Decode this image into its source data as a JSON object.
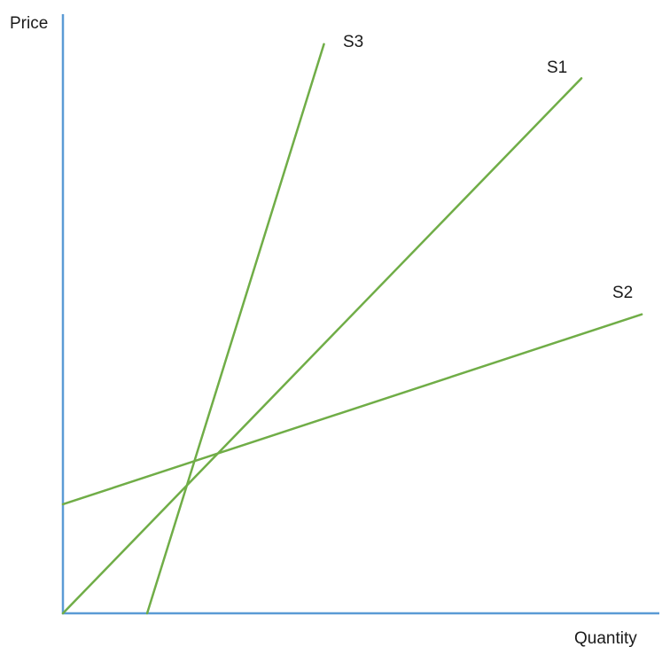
{
  "chart_data": {
    "type": "line",
    "title": "",
    "xlabel": "Quantity",
    "ylabel": "Price",
    "xlim": [
      0,
      100
    ],
    "ylim": [
      0,
      100
    ],
    "grid": false,
    "legend": "inline-labels",
    "series": [
      {
        "name": "S1",
        "x": [
          0,
          86.8
        ],
        "y": [
          0,
          89.3
        ]
      },
      {
        "name": "S2",
        "x": [
          0,
          96.9
        ],
        "y": [
          18.2,
          49.9
        ]
      },
      {
        "name": "S3",
        "x": [
          14.1,
          43.7
        ],
        "y": [
          0,
          95.0
        ]
      }
    ]
  },
  "colors": {
    "axis": "#5b9bd5",
    "curves": "#70ad47"
  }
}
